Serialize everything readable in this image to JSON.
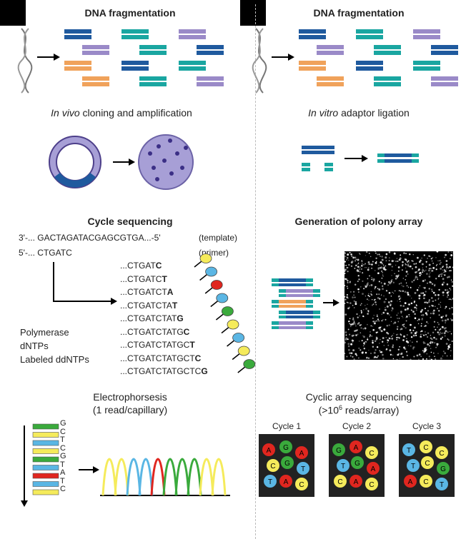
{
  "left": {
    "fragmentation_title": "DNA fragmentation",
    "cloning_title_italic": "In vivo",
    "cloning_title_rest": " cloning and amplification",
    "cycle_seq_title": "Cycle sequencing",
    "template_strand": "3'-... GACTAGATACGAGCGTGA...-5'",
    "template_label": "(template)",
    "primer_strand": "5'-... CTGATC",
    "primer_label": "(primer)",
    "extension_products": [
      {
        "prefix": "...CTGAT",
        "last": "C"
      },
      {
        "prefix": "...CTGATC",
        "last": "T"
      },
      {
        "prefix": "...CTGATCT",
        "last": "A"
      },
      {
        "prefix": "...CTGATCTA",
        "last": "T"
      },
      {
        "prefix": "...CTGATCTAT",
        "last": "G"
      },
      {
        "prefix": "...CTGATCTATG",
        "last": "C"
      },
      {
        "prefix": "...CTGATCTATGC",
        "last": "T"
      },
      {
        "prefix": "...CTGATCTATGCT",
        "last": "C"
      },
      {
        "prefix": "...CTGATCTATGCTC",
        "last": "G"
      }
    ],
    "reagents": [
      "Polymerase",
      "dNTPs",
      "Labeled ddNTPs"
    ],
    "electrophoresis_title_line1": "Electrophorsesis",
    "electrophoresis_title_line2": "(1 read/capillary)",
    "gel_bases": [
      "G",
      "C",
      "T",
      "C",
      "G",
      "T",
      "A",
      "T",
      "C"
    ]
  },
  "right": {
    "fragmentation_title": "DNA fragmentation",
    "ligation_title_italic": "In vitro",
    "ligation_title_rest": " adaptor ligation",
    "polony_title": "Generation of polony array",
    "cyclic_title_line1": "Cyclic array sequencing",
    "cyclic_title_line2_pre": "(>10",
    "cyclic_title_line2_sup": "6",
    "cyclic_title_line2_post": " reads/array)",
    "cycles": [
      {
        "label": "Cycle 1",
        "beads": [
          "A",
          "G",
          "A",
          "C",
          "G",
          "T",
          "T",
          "A",
          "C"
        ]
      },
      {
        "label": "Cycle 2",
        "beads": [
          "G",
          "A",
          "C",
          "T",
          "G",
          "A",
          "C",
          "A",
          "C"
        ]
      },
      {
        "label": "Cycle 3",
        "beads": [
          "T",
          "C",
          "C",
          "T",
          "C",
          "G",
          "A",
          "C",
          "T"
        ]
      }
    ]
  },
  "colors": {
    "dark_blue": "#1f5a9e",
    "teal": "#1aa6a1",
    "lavender": "#9a8ac8",
    "orange": "#f0a25b",
    "A": "#e0261f",
    "C": "#f5eb5b",
    "G": "#3aaa3c",
    "T": "#5ab6e4"
  }
}
